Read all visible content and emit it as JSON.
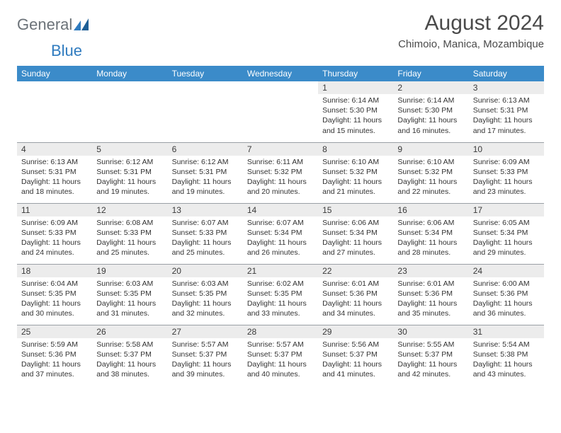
{
  "brand": {
    "general": "General",
    "blue": "Blue"
  },
  "title": "August 2024",
  "subtitle": "Chimoio, Manica, Mozambique",
  "colors": {
    "header_bg": "#3b8bc9",
    "header_fg": "#ffffff",
    "daynum_bg": "#ececec",
    "border": "#9aa0a6",
    "logo_general": "#6b7278",
    "logo_blue": "#2f7bbf"
  },
  "day_labels": [
    "Sunday",
    "Monday",
    "Tuesday",
    "Wednesday",
    "Thursday",
    "Friday",
    "Saturday"
  ],
  "weeks": [
    [
      null,
      null,
      null,
      null,
      {
        "n": "1",
        "sr": "6:14 AM",
        "ss": "5:30 PM",
        "dl": "11 hours and 15 minutes."
      },
      {
        "n": "2",
        "sr": "6:14 AM",
        "ss": "5:30 PM",
        "dl": "11 hours and 16 minutes."
      },
      {
        "n": "3",
        "sr": "6:13 AM",
        "ss": "5:31 PM",
        "dl": "11 hours and 17 minutes."
      }
    ],
    [
      {
        "n": "4",
        "sr": "6:13 AM",
        "ss": "5:31 PM",
        "dl": "11 hours and 18 minutes."
      },
      {
        "n": "5",
        "sr": "6:12 AM",
        "ss": "5:31 PM",
        "dl": "11 hours and 19 minutes."
      },
      {
        "n": "6",
        "sr": "6:12 AM",
        "ss": "5:31 PM",
        "dl": "11 hours and 19 minutes."
      },
      {
        "n": "7",
        "sr": "6:11 AM",
        "ss": "5:32 PM",
        "dl": "11 hours and 20 minutes."
      },
      {
        "n": "8",
        "sr": "6:10 AM",
        "ss": "5:32 PM",
        "dl": "11 hours and 21 minutes."
      },
      {
        "n": "9",
        "sr": "6:10 AM",
        "ss": "5:32 PM",
        "dl": "11 hours and 22 minutes."
      },
      {
        "n": "10",
        "sr": "6:09 AM",
        "ss": "5:33 PM",
        "dl": "11 hours and 23 minutes."
      }
    ],
    [
      {
        "n": "11",
        "sr": "6:09 AM",
        "ss": "5:33 PM",
        "dl": "11 hours and 24 minutes."
      },
      {
        "n": "12",
        "sr": "6:08 AM",
        "ss": "5:33 PM",
        "dl": "11 hours and 25 minutes."
      },
      {
        "n": "13",
        "sr": "6:07 AM",
        "ss": "5:33 PM",
        "dl": "11 hours and 25 minutes."
      },
      {
        "n": "14",
        "sr": "6:07 AM",
        "ss": "5:34 PM",
        "dl": "11 hours and 26 minutes."
      },
      {
        "n": "15",
        "sr": "6:06 AM",
        "ss": "5:34 PM",
        "dl": "11 hours and 27 minutes."
      },
      {
        "n": "16",
        "sr": "6:06 AM",
        "ss": "5:34 PM",
        "dl": "11 hours and 28 minutes."
      },
      {
        "n": "17",
        "sr": "6:05 AM",
        "ss": "5:34 PM",
        "dl": "11 hours and 29 minutes."
      }
    ],
    [
      {
        "n": "18",
        "sr": "6:04 AM",
        "ss": "5:35 PM",
        "dl": "11 hours and 30 minutes."
      },
      {
        "n": "19",
        "sr": "6:03 AM",
        "ss": "5:35 PM",
        "dl": "11 hours and 31 minutes."
      },
      {
        "n": "20",
        "sr": "6:03 AM",
        "ss": "5:35 PM",
        "dl": "11 hours and 32 minutes."
      },
      {
        "n": "21",
        "sr": "6:02 AM",
        "ss": "5:35 PM",
        "dl": "11 hours and 33 minutes."
      },
      {
        "n": "22",
        "sr": "6:01 AM",
        "ss": "5:36 PM",
        "dl": "11 hours and 34 minutes."
      },
      {
        "n": "23",
        "sr": "6:01 AM",
        "ss": "5:36 PM",
        "dl": "11 hours and 35 minutes."
      },
      {
        "n": "24",
        "sr": "6:00 AM",
        "ss": "5:36 PM",
        "dl": "11 hours and 36 minutes."
      }
    ],
    [
      {
        "n": "25",
        "sr": "5:59 AM",
        "ss": "5:36 PM",
        "dl": "11 hours and 37 minutes."
      },
      {
        "n": "26",
        "sr": "5:58 AM",
        "ss": "5:37 PM",
        "dl": "11 hours and 38 minutes."
      },
      {
        "n": "27",
        "sr": "5:57 AM",
        "ss": "5:37 PM",
        "dl": "11 hours and 39 minutes."
      },
      {
        "n": "28",
        "sr": "5:57 AM",
        "ss": "5:37 PM",
        "dl": "11 hours and 40 minutes."
      },
      {
        "n": "29",
        "sr": "5:56 AM",
        "ss": "5:37 PM",
        "dl": "11 hours and 41 minutes."
      },
      {
        "n": "30",
        "sr": "5:55 AM",
        "ss": "5:37 PM",
        "dl": "11 hours and 42 minutes."
      },
      {
        "n": "31",
        "sr": "5:54 AM",
        "ss": "5:38 PM",
        "dl": "11 hours and 43 minutes."
      }
    ]
  ],
  "labels": {
    "sunrise": "Sunrise: ",
    "sunset": "Sunset: ",
    "daylight": "Daylight: "
  }
}
